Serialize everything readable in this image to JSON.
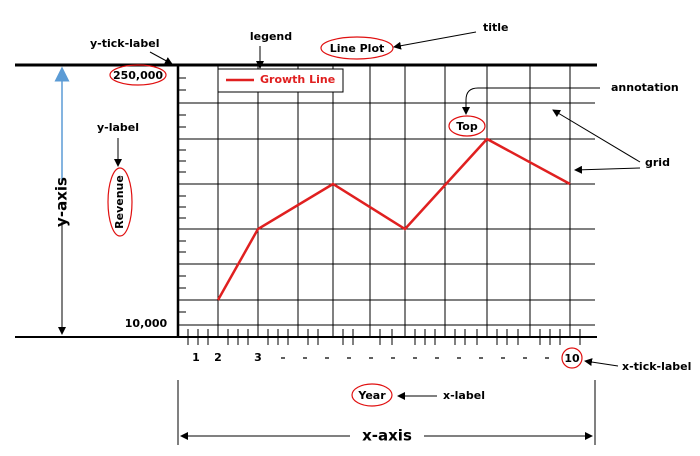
{
  "diagram": {
    "title": "Line Plot",
    "legend_entry": "Growth Line",
    "annotation_text": "Top",
    "y_label": "Revenue",
    "x_label": "Year",
    "y_tick_labels": [
      "250,000",
      "10,000"
    ],
    "x_tick_labels": [
      "1",
      "2",
      "3",
      "10"
    ],
    "callouts": {
      "title": "title",
      "legend": "legend",
      "annotation": "annotation",
      "grid": "grid",
      "y_tick_label": "y-tick-label",
      "y_label": "y-label",
      "x_tick_label": "x-tick-label",
      "x_label": "x-label",
      "y_axis": "y-axis",
      "x_axis": "x-axis"
    }
  }
}
